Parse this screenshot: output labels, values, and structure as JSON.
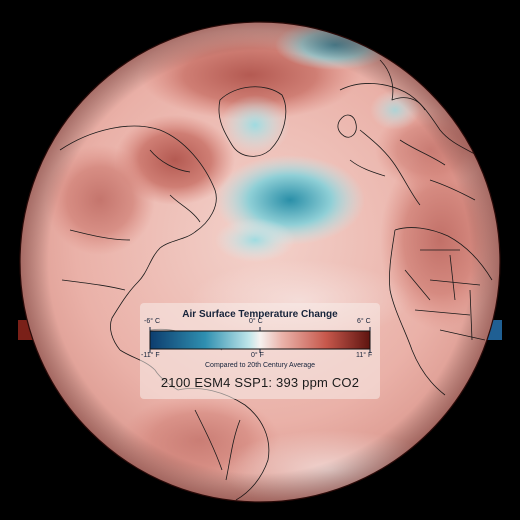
{
  "map": {
    "projection": "orthographic globe",
    "region": "North Atlantic centered view",
    "colors": {
      "background": "#000000",
      "cold_extreme": "#0d3d6e",
      "cold_mid": "#3fa3b5",
      "neutral": "#f4eeec",
      "warm_mid": "#d98a80",
      "warm_extreme": "#5e1410",
      "border_lines": "#1a1a1a"
    }
  },
  "legend": {
    "title": "Air Surface Temperature Change",
    "celsius": {
      "min": "-6° C",
      "mid": "0° C",
      "max": "6° C"
    },
    "fahrenheit": {
      "min": "-11° F",
      "mid": "0° F",
      "max": "11° F"
    },
    "caption": "Compared to 20th Century Average"
  },
  "scenario_label": "2100 ESM4 SSP1: 393 ppm CO2"
}
